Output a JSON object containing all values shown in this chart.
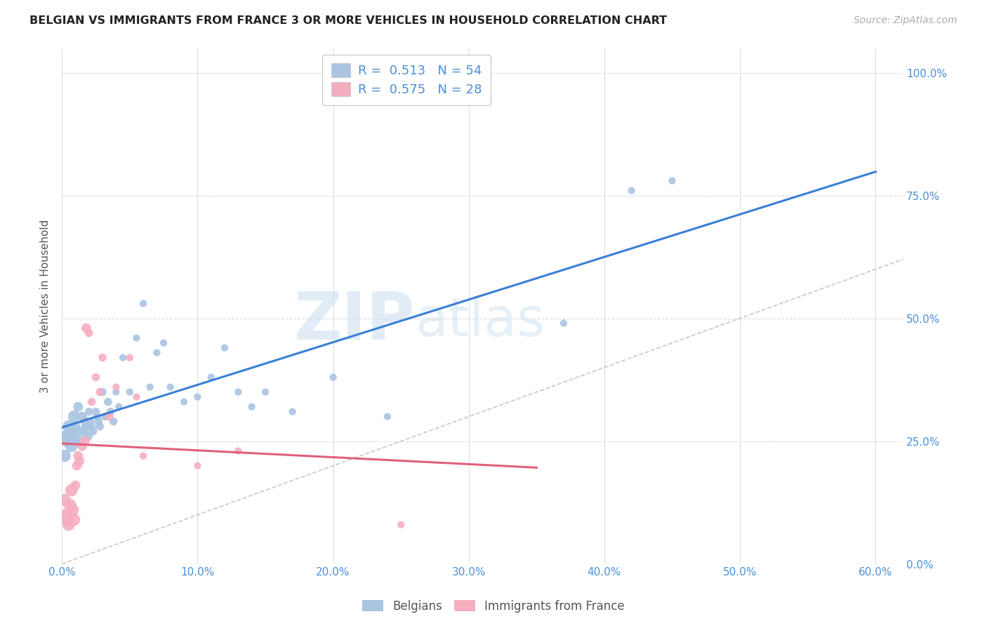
{
  "title": "BELGIAN VS IMMIGRANTS FROM FRANCE 3 OR MORE VEHICLES IN HOUSEHOLD CORRELATION CHART",
  "source": "Source: ZipAtlas.com",
  "xlabel_values": [
    0,
    10,
    20,
    30,
    40,
    50,
    60
  ],
  "ylabel_values": [
    0,
    25,
    50,
    75,
    100
  ],
  "xlim": [
    0,
    62
  ],
  "ylim": [
    0,
    105
  ],
  "belgian_R": 0.513,
  "belgian_N": 54,
  "france_R": 0.575,
  "france_N": 28,
  "belgians_color": "#aac4e2",
  "france_color": "#f5aec0",
  "trendline_belgian_color": "#3a7fd5",
  "trendline_france_color": "#e0607a",
  "diag_color": "#c8c8c8",
  "ylabel": "3 or more Vehicles in Household",
  "watermark_zip": "ZIP",
  "watermark_atlas": "atlas",
  "belgians_x": [
    0.2,
    0.3,
    0.4,
    0.5,
    0.6,
    0.7,
    0.8,
    0.9,
    1.0,
    1.1,
    1.2,
    1.3,
    1.4,
    1.5,
    1.6,
    1.7,
    1.8,
    1.9,
    2.0,
    2.1,
    2.2,
    2.3,
    2.5,
    2.6,
    2.7,
    2.8,
    3.0,
    3.2,
    3.4,
    3.6,
    3.8,
    4.0,
    4.2,
    4.5,
    5.0,
    5.5,
    6.0,
    6.5,
    7.0,
    7.5,
    8.0,
    9.0,
    10.0,
    11.0,
    12.0,
    13.0,
    14.0,
    15.0,
    17.0,
    20.0,
    24.0,
    37.0,
    42.0,
    45.0
  ],
  "belgians_y": [
    22,
    26,
    25,
    28,
    27,
    24,
    26,
    30,
    28,
    25,
    32,
    27,
    25,
    30,
    27,
    29,
    28,
    26,
    31,
    29,
    28,
    27,
    31,
    30,
    29,
    28,
    35,
    30,
    33,
    31,
    29,
    35,
    32,
    42,
    35,
    46,
    53,
    36,
    43,
    45,
    36,
    33,
    34,
    38,
    44,
    35,
    32,
    35,
    31,
    38,
    30,
    49,
    76,
    78
  ],
  "france_x": [
    0.2,
    0.3,
    0.4,
    0.5,
    0.6,
    0.7,
    0.8,
    0.9,
    1.0,
    1.1,
    1.2,
    1.3,
    1.5,
    1.7,
    1.8,
    2.0,
    2.2,
    2.5,
    2.8,
    3.0,
    3.5,
    4.0,
    5.0,
    5.5,
    6.0,
    10.0,
    13.0,
    25.0
  ],
  "france_y": [
    13,
    10,
    9,
    8,
    12,
    15,
    11,
    9,
    16,
    20,
    22,
    21,
    24,
    25,
    48,
    47,
    33,
    38,
    35,
    42,
    30,
    36,
    42,
    34,
    22,
    20,
    23,
    8
  ]
}
